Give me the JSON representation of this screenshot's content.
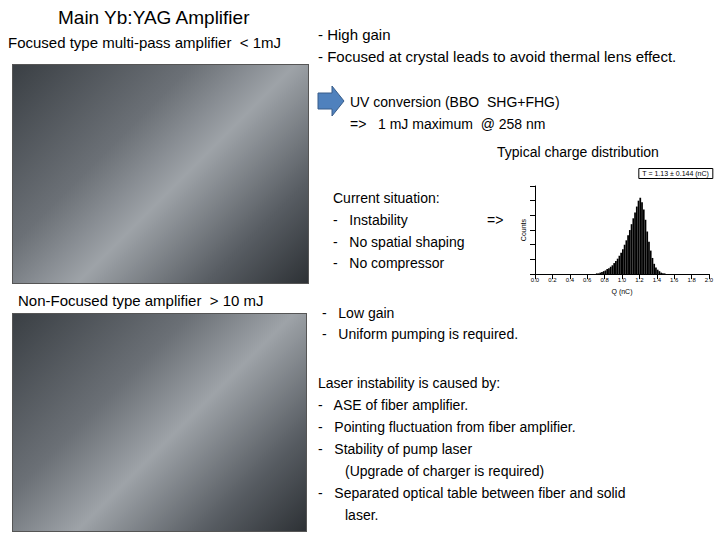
{
  "slide": {
    "title": "Main Yb:YAG Amplifier",
    "focused": {
      "label": "Focused type multi-pass amplifier  < 1mJ",
      "notes": [
        "- High gain",
        "- Focused at crystal leads to avoid thermal lens effect."
      ]
    },
    "uv_conversion": [
      "UV conversion (BBO  SHG+FHG)",
      "=>   1 mJ maximum  @ 258 nm"
    ],
    "chart_caption": "Typical charge distribution",
    "current_situation": {
      "heading": "Current situation:",
      "items": [
        "-   Instability",
        "-   No spatial shaping",
        "-   No compressor"
      ],
      "arrow": "=>"
    },
    "non_focused": {
      "label": "Non-Focused type amplifier  > 10 mJ",
      "notes": [
        "-   Low gain",
        "-   Uniform pumping is required."
      ]
    },
    "instability_causes": {
      "heading": "Laser instability is caused by:",
      "items": [
        [
          "-   ASE of fiber amplifier."
        ],
        [
          "-   Pointing fluctuation from fiber amplifier."
        ],
        [
          "-   Stability of pump laser",
          "(Upgrade of charger is required)"
        ],
        [
          "-   Separated optical table between fiber and solid",
          "laser."
        ]
      ]
    }
  },
  "chart_data": {
    "type": "histogram",
    "title": "T = 1.13 ± 0.144 (nC)",
    "x_label": "Q (nC)",
    "y_label": "Counts",
    "color": "#000000",
    "bins": [
      0.7,
      0.72,
      0.74,
      0.76,
      0.78,
      0.8,
      0.82,
      0.84,
      0.86,
      0.88,
      0.9,
      0.92,
      0.94,
      0.96,
      0.98,
      1.0,
      1.02,
      1.04,
      1.06,
      1.08,
      1.1,
      1.12,
      1.14,
      1.16,
      1.18,
      1.2,
      1.22,
      1.24,
      1.26,
      1.28,
      1.3,
      1.32,
      1.34,
      1.36,
      1.38,
      1.4,
      1.42,
      1.44,
      1.46,
      1.48,
      1.5
    ],
    "values": [
      1,
      1,
      2,
      3,
      4,
      5,
      7,
      8,
      10,
      12,
      15,
      18,
      21,
      25,
      29,
      34,
      40,
      46,
      53,
      60,
      68,
      76,
      84,
      92,
      100,
      104,
      98,
      88,
      74,
      58,
      44,
      32,
      22,
      14,
      9,
      6,
      4,
      2,
      1,
      1
    ],
    "xlim": [
      0,
      2
    ],
    "xticks": [
      {
        "value": 0,
        "label": "0.0"
      },
      {
        "value": 0.2,
        "label": "0.2"
      },
      {
        "value": 0.4,
        "label": "0.4"
      },
      {
        "value": 0.6,
        "label": "0.6"
      },
      {
        "value": 0.8,
        "label": "0.8"
      },
      {
        "value": 1,
        "label": "1.0"
      },
      {
        "value": 1.2,
        "label": "1.2"
      },
      {
        "value": 1.4,
        "label": "1.4"
      },
      {
        "value": 1.6,
        "label": "1.6"
      },
      {
        "value": 1.8,
        "label": "1.8"
      },
      {
        "value": 2,
        "label": "2.0"
      }
    ],
    "ylim": [
      0,
      120
    ],
    "yticks": [
      0,
      20,
      40,
      60,
      80,
      100,
      120
    ],
    "tick_labels": "x",
    "grid": false
  }
}
